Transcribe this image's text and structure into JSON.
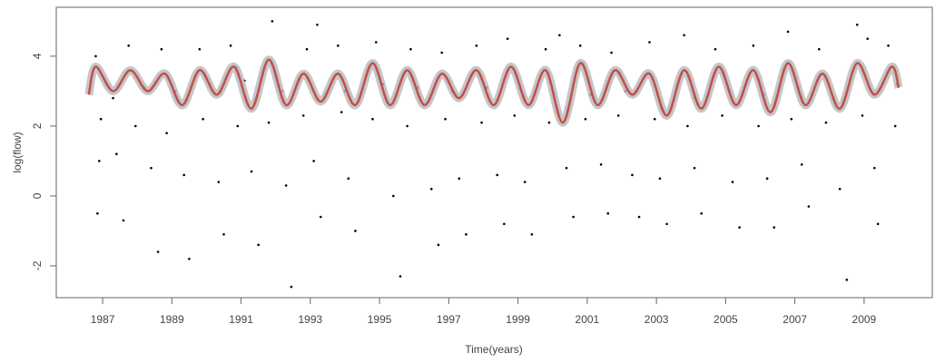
{
  "chart_data": {
    "type": "scatter",
    "xlabel": "Time(years)",
    "ylabel": "log(flow)",
    "xlim": [
      1985.66,
      2010.97
    ],
    "ylim": [
      -2.91,
      5.4
    ],
    "xticks": [
      1987,
      1989,
      1991,
      1993,
      1995,
      1997,
      1999,
      2001,
      2003,
      2005,
      2007,
      2009
    ],
    "yticks": [
      -2,
      0,
      2,
      4
    ],
    "color": "#000000",
    "x": [
      1986.8,
      1986.95,
      1986.9,
      1986.85,
      1987.3,
      1987.75,
      1987.95,
      1987.4,
      1987.6,
      1988.2,
      1988.7,
      1988.85,
      1988.4,
      1988.6,
      1989.1,
      1989.8,
      1989.9,
      1989.35,
      1989.5,
      1990.1,
      1990.7,
      1990.9,
      1990.35,
      1990.5,
      1991.1,
      1991.9,
      1991.8,
      1991.3,
      1991.5,
      1992.2,
      1992.9,
      1992.8,
      1992.3,
      1992.45,
      1993.2,
      1993.8,
      1993.9,
      1993.1,
      1993.3,
      1994.0,
      1994.9,
      1994.8,
      1994.1,
      1994.3,
      1995.1,
      1995.9,
      1995.8,
      1995.4,
      1995.6,
      1996.1,
      1996.8,
      1996.9,
      1996.5,
      1996.7,
      1997.1,
      1997.8,
      1997.95,
      1997.3,
      1997.5,
      1998.1,
      1998.7,
      1998.9,
      1998.4,
      1998.6,
      1999.1,
      1999.8,
      1999.9,
      1999.2,
      1999.4,
      2000.2,
      2000.8,
      2000.95,
      2000.4,
      2000.6,
      2001.1,
      2001.7,
      2001.9,
      2001.4,
      2001.6,
      2002.1,
      2002.8,
      2002.95,
      2002.3,
      2002.5,
      2003.1,
      2003.8,
      2003.9,
      2003.1,
      2003.3,
      2004.1,
      2004.7,
      2004.9,
      2004.1,
      2004.3,
      2005.1,
      2005.8,
      2005.95,
      2005.2,
      2005.4,
      2006.1,
      2006.8,
      2006.9,
      2006.2,
      2006.4,
      2007.1,
      2007.7,
      2007.9,
      2007.2,
      2007.4,
      2008.1,
      2008.8,
      2008.95,
      2008.3,
      2008.5,
      2009.1,
      2009.7,
      2009.9,
      2009.3,
      2009.4,
      2009.95
    ],
    "values": [
      4.0,
      2.2,
      1.0,
      -0.5,
      2.8,
      4.3,
      2.0,
      1.2,
      -0.7,
      3.1,
      4.2,
      1.8,
      0.8,
      -1.6,
      3.0,
      4.2,
      2.2,
      0.6,
      -1.8,
      3.2,
      4.3,
      2.0,
      0.4,
      -1.1,
      3.3,
      5.0,
      2.1,
      0.7,
      -1.4,
      3.0,
      4.2,
      2.3,
      0.3,
      -2.6,
      4.9,
      4.3,
      2.4,
      1.0,
      -0.6,
      3.0,
      4.4,
      2.2,
      0.5,
      -1.0,
      3.2,
      4.2,
      2.0,
      0.0,
      -2.3,
      3.1,
      4.1,
      2.2,
      0.2,
      -1.4,
      3.0,
      4.3,
      2.1,
      0.5,
      -1.1,
      3.1,
      4.5,
      2.3,
      0.6,
      -0.8,
      3.0,
      4.2,
      2.1,
      0.4,
      -1.1,
      4.6,
      4.3,
      2.2,
      0.8,
      -0.6,
      2.9,
      4.1,
      2.3,
      0.9,
      -0.5,
      3.0,
      4.4,
      2.2,
      0.6,
      -0.6,
      2.7,
      4.6,
      2.0,
      0.5,
      -0.8,
      2.8,
      4.2,
      2.3,
      0.8,
      -0.5,
      3.0,
      4.3,
      2.0,
      0.4,
      -0.9,
      2.9,
      4.7,
      2.2,
      0.5,
      -0.9,
      3.1,
      4.2,
      2.1,
      0.9,
      -0.3,
      2.8,
      4.9,
      2.3,
      0.2,
      -2.4,
      4.5,
      4.3,
      2.0,
      0.8,
      -0.8,
      3.2
    ],
    "line": {
      "color": "#c0504d",
      "band_color": "#b8b8b8",
      "x": [
        1986.6,
        1986.8,
        1987.3,
        1987.8,
        1988.3,
        1988.8,
        1989.3,
        1989.8,
        1990.3,
        1990.8,
        1991.3,
        1991.8,
        1992.3,
        1992.8,
        1993.3,
        1993.8,
        1994.3,
        1994.8,
        1995.3,
        1995.8,
        1996.3,
        1996.8,
        1997.3,
        1997.8,
        1998.3,
        1998.8,
        1999.3,
        1999.8,
        2000.3,
        2000.8,
        2001.3,
        2001.8,
        2002.3,
        2002.8,
        2003.3,
        2003.8,
        2004.3,
        2004.8,
        2005.3,
        2005.8,
        2006.3,
        2006.8,
        2007.3,
        2007.8,
        2008.3,
        2008.8,
        2009.3,
        2009.8,
        2010.0
      ],
      "values": [
        2.9,
        3.7,
        3.0,
        3.6,
        3.0,
        3.5,
        2.6,
        3.6,
        2.9,
        3.7,
        2.5,
        3.9,
        2.6,
        3.5,
        2.7,
        3.5,
        2.6,
        3.8,
        2.6,
        3.6,
        2.6,
        3.5,
        2.8,
        3.6,
        2.6,
        3.7,
        2.6,
        3.6,
        2.1,
        3.8,
        2.6,
        3.6,
        2.9,
        3.5,
        2.3,
        3.6,
        2.5,
        3.7,
        2.6,
        3.6,
        2.4,
        3.8,
        2.6,
        3.5,
        2.5,
        3.8,
        2.9,
        3.7,
        3.1
      ]
    }
  }
}
